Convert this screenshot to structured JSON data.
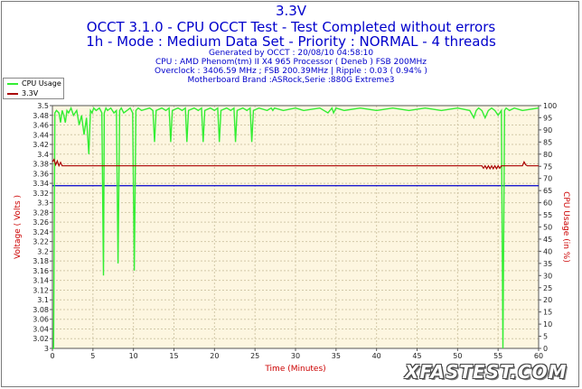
{
  "title": "3.3V",
  "subtitle1": "OCCT 3.1.0 - CPU OCCT Test - Test Completed without errors",
  "subtitle2": "1h - Mode : Medium Data Set - Priority : NORMAL - 4 threads",
  "info": [
    "Generated by OCCT : 20/08/10 04:58:10",
    "CPU : AMD Phenom(tm) II X4 965 Processor ( Deneb ) FSB 200MHz",
    "Overclock : 3406.59 MHz ; FSB 200.39MHz | Ripple : 0.03 ( 0.94% )",
    "Motherboard Brand :ASRock,Serie :880G Extreme3"
  ],
  "logo": "XFASTEST.COM",
  "colors": {
    "cpu": "#33ee33",
    "voltage": "#aa0000",
    "marker": "#0000cc",
    "plot_bg": "#fdf6e0",
    "grid": "#d2c8a8"
  },
  "chart_data": {
    "type": "line",
    "xlabel": "Time (Minutes)",
    "ylabel_left": "Voltage ( Volts )",
    "ylabel_right": "CPU Usage (in %)",
    "xlim": [
      0,
      60
    ],
    "ylim_left": [
      3.0,
      3.5
    ],
    "ylim_right": [
      0,
      100
    ],
    "x_ticks": [
      0,
      5,
      10,
      15,
      20,
      25,
      30,
      35,
      40,
      45,
      50,
      55,
      60
    ],
    "y_ticks_left": [
      3,
      3.02,
      3.04,
      3.06,
      3.08,
      3.1,
      3.12,
      3.14,
      3.16,
      3.18,
      3.2,
      3.22,
      3.24,
      3.26,
      3.28,
      3.3,
      3.32,
      3.34,
      3.36,
      3.38,
      3.4,
      3.42,
      3.44,
      3.46,
      3.48,
      3.5
    ],
    "y_ticks_right": [
      0,
      5,
      10,
      15,
      20,
      25,
      30,
      35,
      40,
      45,
      50,
      55,
      60,
      65,
      70,
      75,
      80,
      85,
      90,
      95,
      100
    ],
    "grid": true,
    "legend": "top-left",
    "reference_line": {
      "axis": "left",
      "value": 3.335
    },
    "series": [
      {
        "name": "CPU Usage",
        "axis": "right",
        "x": [
          0,
          0.15,
          0.3,
          0.5,
          0.8,
          1.0,
          1.2,
          1.4,
          1.6,
          1.8,
          2.0,
          2.3,
          2.6,
          3.0,
          3.3,
          3.6,
          3.9,
          4.2,
          4.5,
          4.7,
          4.9,
          5.1,
          5.4,
          5.8,
          6.1,
          6.3,
          6.4,
          6.6,
          6.8,
          7.2,
          7.6,
          7.9,
          8.1,
          8.3,
          8.5,
          8.8,
          9.2,
          9.6,
          9.9,
          10.1,
          10.3,
          10.6,
          11.0,
          12.0,
          12.4,
          12.6,
          12.8,
          13.5,
          14.0,
          14.4,
          14.6,
          14.8,
          15.5,
          16.0,
          16.4,
          16.6,
          16.8,
          17.5,
          18.0,
          18.4,
          18.6,
          18.8,
          19.5,
          20.0,
          20.4,
          20.6,
          20.8,
          21.5,
          22.0,
          22.4,
          22.6,
          22.8,
          23.5,
          24.0,
          24.4,
          24.6,
          24.8,
          25.5,
          26.5,
          27.0,
          27.2,
          27.4,
          28.5,
          30.0,
          31.0,
          33.0,
          34.0,
          34.5,
          34.7,
          35.0,
          36.0,
          38.0,
          40.0,
          42.0,
          44.0,
          46.0,
          48.0,
          50.0,
          51.5,
          52.0,
          52.3,
          52.6,
          53.0,
          53.4,
          53.8,
          54.2,
          54.6,
          55.0,
          55.4,
          55.6,
          55.8,
          56.0,
          56.4,
          57.0,
          58.0,
          60.0
        ],
        "values": [
          0,
          0,
          97,
          98,
          97,
          93,
          98,
          96,
          93,
          98,
          97,
          99,
          96,
          98,
          92,
          96,
          88,
          95,
          80,
          98,
          97,
          99,
          98,
          99,
          97,
          30,
          97,
          99,
          98,
          99,
          97,
          98,
          35,
          98,
          99,
          97,
          98,
          99,
          97,
          32,
          98,
          99,
          98,
          99,
          98,
          85,
          98,
          99,
          98,
          99,
          85,
          98,
          99,
          98,
          99,
          85,
          98,
          99,
          98,
          99,
          85,
          98,
          99,
          98,
          99,
          85,
          98,
          99,
          98,
          99,
          85,
          98,
          99,
          98,
          99,
          85,
          98,
          99,
          98,
          99,
          98,
          99,
          98,
          99,
          98,
          99,
          97,
          99,
          97,
          99,
          98,
          99,
          98,
          99,
          98,
          99,
          98,
          99,
          98,
          95,
          98,
          99,
          98,
          95,
          98,
          99,
          98,
          96,
          98,
          0,
          98,
          99,
          98,
          99,
          98,
          99
        ]
      },
      {
        "name": "3.3V",
        "axis": "left",
        "x": [
          0,
          0.2,
          0.4,
          0.6,
          0.8,
          1.0,
          1.2,
          1.4,
          53,
          53.2,
          53.4,
          53.6,
          53.8,
          54.0,
          54.2,
          54.4,
          54.6,
          54.8,
          55.0,
          55.2,
          55.4,
          55.6,
          56.0,
          58.0,
          58.2,
          58.4,
          58.6,
          60.0
        ],
        "values": [
          3.384,
          3.389,
          3.378,
          3.386,
          3.376,
          3.383,
          3.376,
          3.376,
          3.376,
          3.371,
          3.376,
          3.37,
          3.376,
          3.37,
          3.376,
          3.37,
          3.376,
          3.37,
          3.376,
          3.371,
          3.376,
          3.376,
          3.376,
          3.376,
          3.384,
          3.378,
          3.376,
          3.376
        ]
      }
    ]
  }
}
